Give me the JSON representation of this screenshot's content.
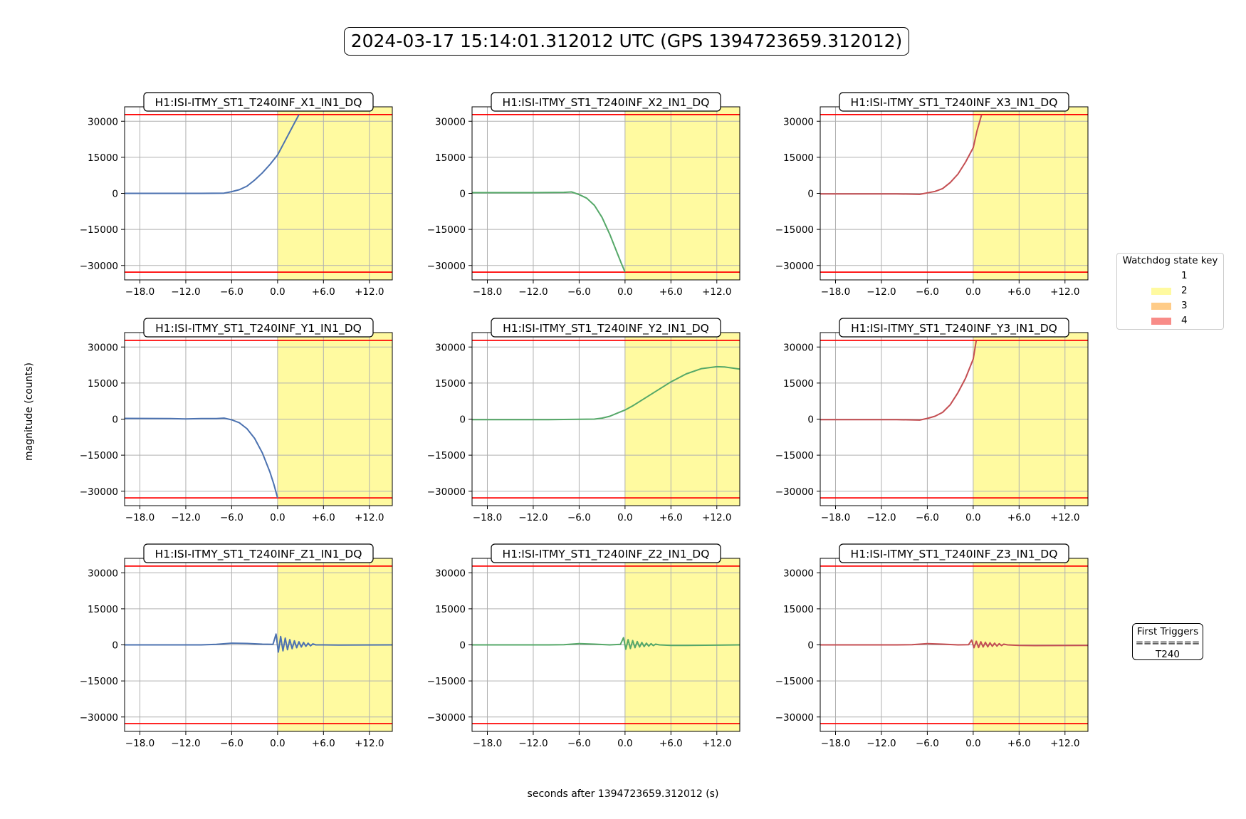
{
  "figure": {
    "title": "2024-03-17 15:14:01.312012 UTC (GPS 1394723659.312012)",
    "xlabel": "seconds after 1394723659.312012 (s)",
    "ylabel": "magnitude (counts)"
  },
  "legend": {
    "title": "Watchdog state key",
    "items": [
      {
        "label": "1",
        "color": "#ffffff"
      },
      {
        "label": "2",
        "color": "#fffaa0"
      },
      {
        "label": "3",
        "color": "#ffcc88"
      },
      {
        "label": "4",
        "color": "#f88c88"
      }
    ]
  },
  "triggers": {
    "title": "First Triggers",
    "divider": "========",
    "value": "T240"
  },
  "chart_data": [
    {
      "type": "line",
      "title": "H1:ISI-ITMY_ST1_T240INF_X1_IN1_DQ",
      "color": "#4c72b0",
      "xlim": [
        -20,
        15
      ],
      "ylim": [
        -36000,
        36000
      ],
      "xticks": [
        -18,
        -12,
        -6,
        0,
        6,
        12
      ],
      "xticklabels": [
        "−18.0",
        "−12.0",
        "−6.0",
        "0.0",
        "+6.0",
        "+12.0"
      ],
      "yticks": [
        30000,
        15000,
        0,
        -15000,
        -30000
      ],
      "yticklabels": [
        "30000",
        "15000",
        "0",
        "−15000",
        "−30000"
      ],
      "thresholds": [
        32768,
        -32768
      ],
      "shaded_region": {
        "x": [
          0,
          15
        ],
        "state": 2
      },
      "x": [
        -20,
        -10,
        -7,
        -6,
        -5,
        -4,
        -3,
        -2,
        -1,
        0,
        1,
        2,
        2.8
      ],
      "y": [
        0,
        0,
        100,
        700,
        1500,
        3000,
        5500,
        8500,
        12000,
        16000,
        22000,
        28000,
        32768
      ]
    },
    {
      "type": "line",
      "title": "H1:ISI-ITMY_ST1_T240INF_X2_IN1_DQ",
      "color": "#55a868",
      "xlim": [
        -20,
        15
      ],
      "ylim": [
        -36000,
        36000
      ],
      "xticks": [
        -18,
        -12,
        -6,
        0,
        6,
        12
      ],
      "xticklabels": [
        "−18.0",
        "−12.0",
        "−6.0",
        "0.0",
        "+6.0",
        "+12.0"
      ],
      "yticks": [
        30000,
        15000,
        0,
        -15000,
        -30000
      ],
      "yticklabels": [
        "30000",
        "15000",
        "0",
        "−15000",
        "−30000"
      ],
      "thresholds": [
        32768,
        -32768
      ],
      "shaded_region": {
        "x": [
          0,
          15
        ],
        "state": 2
      },
      "x": [
        -20,
        -12,
        -8,
        -7,
        -6,
        -5,
        -4,
        -3,
        -2,
        -1,
        -0.5,
        0
      ],
      "y": [
        300,
        300,
        400,
        600,
        -500,
        -2000,
        -5000,
        -10000,
        -17000,
        -25000,
        -29000,
        -32768
      ]
    },
    {
      "type": "line",
      "title": "H1:ISI-ITMY_ST1_T240INF_X3_IN1_DQ",
      "color": "#c44e52",
      "xlim": [
        -20,
        15
      ],
      "ylim": [
        -36000,
        36000
      ],
      "xticks": [
        -18,
        -12,
        -6,
        0,
        6,
        12
      ],
      "xticklabels": [
        "−18.0",
        "−12.0",
        "−6.0",
        "0.0",
        "+6.0",
        "+12.0"
      ],
      "yticks": [
        30000,
        15000,
        0,
        -15000,
        -30000
      ],
      "yticklabels": [
        "30000",
        "15000",
        "0",
        "−15000",
        "−30000"
      ],
      "thresholds": [
        32768,
        -32768
      ],
      "shaded_region": {
        "x": [
          0,
          15
        ],
        "state": 2
      },
      "x": [
        -20,
        -10,
        -7,
        -6,
        -5,
        -4,
        -3,
        -2,
        -1,
        0,
        0.5,
        1.1
      ],
      "y": [
        -200,
        -200,
        -400,
        200,
        800,
        2000,
        4500,
        8000,
        13000,
        19000,
        26000,
        32768
      ]
    },
    {
      "type": "line",
      "title": "H1:ISI-ITMY_ST1_T240INF_Y1_IN1_DQ",
      "color": "#4c72b0",
      "xlim": [
        -20,
        15
      ],
      "ylim": [
        -36000,
        36000
      ],
      "xticks": [
        -18,
        -12,
        -6,
        0,
        6,
        12
      ],
      "xticklabels": [
        "−18.0",
        "−12.0",
        "−6.0",
        "0.0",
        "+6.0",
        "+12.0"
      ],
      "yticks": [
        30000,
        15000,
        0,
        -15000,
        -30000
      ],
      "yticklabels": [
        "30000",
        "15000",
        "0",
        "−15000",
        "−30000"
      ],
      "thresholds": [
        32768,
        -32768
      ],
      "shaded_region": {
        "x": [
          0,
          15
        ],
        "state": 2
      },
      "x": [
        -20,
        -14,
        -12,
        -10,
        -8,
        -7,
        -6,
        -5,
        -4,
        -3,
        -2,
        -1,
        -0.5,
        0
      ],
      "y": [
        300,
        200,
        100,
        200,
        200,
        400,
        -300,
        -1500,
        -4000,
        -8000,
        -14000,
        -22000,
        -27000,
        -32768
      ]
    },
    {
      "type": "line",
      "title": "H1:ISI-ITMY_ST1_T240INF_Y2_IN1_DQ",
      "color": "#55a868",
      "xlim": [
        -20,
        15
      ],
      "ylim": [
        -36000,
        36000
      ],
      "xticks": [
        -18,
        -12,
        -6,
        0,
        6,
        12
      ],
      "xticklabels": [
        "−18.0",
        "−12.0",
        "−6.0",
        "0.0",
        "+6.0",
        "+12.0"
      ],
      "yticks": [
        30000,
        15000,
        0,
        -15000,
        -30000
      ],
      "yticklabels": [
        "30000",
        "15000",
        "0",
        "−15000",
        "−30000"
      ],
      "thresholds": [
        32768,
        -32768
      ],
      "shaded_region": {
        "x": [
          0,
          15
        ],
        "state": 2
      },
      "x": [
        -20,
        -10,
        -6,
        -4,
        -3,
        -2,
        -1,
        0,
        1,
        2,
        4,
        6,
        8,
        10,
        12,
        13,
        15
      ],
      "y": [
        -200,
        -200,
        -100,
        0,
        400,
        1200,
        2500,
        3800,
        5500,
        7500,
        11500,
        15500,
        18800,
        21000,
        21800,
        21700,
        20800
      ]
    },
    {
      "type": "line",
      "title": "H1:ISI-ITMY_ST1_T240INF_Y3_IN1_DQ",
      "color": "#c44e52",
      "xlim": [
        -20,
        15
      ],
      "ylim": [
        -36000,
        36000
      ],
      "xticks": [
        -18,
        -12,
        -6,
        0,
        6,
        12
      ],
      "xticklabels": [
        "−18.0",
        "−12.0",
        "−6.0",
        "0.0",
        "+6.0",
        "+12.0"
      ],
      "yticks": [
        30000,
        15000,
        0,
        -15000,
        -30000
      ],
      "yticklabels": [
        "30000",
        "15000",
        "0",
        "−15000",
        "−30000"
      ],
      "thresholds": [
        32768,
        -32768
      ],
      "shaded_region": {
        "x": [
          0,
          15
        ],
        "state": 2
      },
      "x": [
        -20,
        -10,
        -7,
        -6,
        -5,
        -4,
        -3,
        -2,
        -1,
        0,
        0.4
      ],
      "y": [
        -200,
        -200,
        -400,
        300,
        1200,
        2800,
        6000,
        11000,
        17000,
        25000,
        32768
      ]
    },
    {
      "type": "line",
      "title": "H1:ISI-ITMY_ST1_T240INF_Z1_IN1_DQ",
      "color": "#4c72b0",
      "xlim": [
        -20,
        15
      ],
      "ylim": [
        -36000,
        36000
      ],
      "xticks": [
        -18,
        -12,
        -6,
        0,
        6,
        12
      ],
      "xticklabels": [
        "−18.0",
        "−12.0",
        "−6.0",
        "0.0",
        "+6.0",
        "+12.0"
      ],
      "yticks": [
        30000,
        15000,
        0,
        -15000,
        -30000
      ],
      "yticklabels": [
        "30000",
        "15000",
        "0",
        "−15000",
        "−30000"
      ],
      "thresholds": [
        32768,
        -32768
      ],
      "shaded_region": {
        "x": [
          0,
          15
        ],
        "state": 2
      },
      "x": [
        -20,
        -10,
        -8,
        -6,
        -4,
        -2,
        -0.6,
        -0.2,
        0.1,
        0.4,
        0.7,
        1.0,
        1.3,
        1.6,
        1.9,
        2.2,
        2.5,
        2.8,
        3.1,
        3.4,
        3.7,
        4.0,
        4.3,
        4.6,
        5.0,
        6,
        8,
        15
      ],
      "y": [
        0,
        0,
        200,
        700,
        600,
        300,
        200,
        4500,
        -3000,
        3500,
        -2500,
        2800,
        -2000,
        2200,
        -1600,
        1700,
        -1200,
        1300,
        -900,
        1000,
        -600,
        700,
        -400,
        400,
        0,
        0,
        -100,
        0
      ]
    },
    {
      "type": "line",
      "title": "H1:ISI-ITMY_ST1_T240INF_Z2_IN1_DQ",
      "color": "#55a868",
      "xlim": [
        -20,
        15
      ],
      "ylim": [
        -36000,
        36000
      ],
      "xticks": [
        -18,
        -12,
        -6,
        0,
        6,
        12
      ],
      "xticklabels": [
        "−18.0",
        "−12.0",
        "−6.0",
        "0.0",
        "+6.0",
        "+12.0"
      ],
      "yticks": [
        30000,
        15000,
        0,
        -15000,
        -30000
      ],
      "yticklabels": [
        "30000",
        "15000",
        "0",
        "−15000",
        "−30000"
      ],
      "thresholds": [
        32768,
        -32768
      ],
      "shaded_region": {
        "x": [
          0,
          15
        ],
        "state": 2
      },
      "x": [
        -20,
        -10,
        -8,
        -6,
        -4,
        -2,
        -0.6,
        -0.2,
        0.1,
        0.4,
        0.7,
        1.0,
        1.3,
        1.6,
        1.9,
        2.2,
        2.5,
        2.8,
        3.1,
        3.4,
        3.7,
        4.0,
        4.5,
        6,
        8,
        15
      ],
      "y": [
        0,
        0,
        100,
        500,
        300,
        0,
        200,
        3000,
        -1800,
        2200,
        -1500,
        1800,
        -1200,
        1400,
        -900,
        1000,
        -700,
        700,
        -500,
        500,
        -300,
        300,
        0,
        -200,
        -200,
        0
      ]
    },
    {
      "type": "line",
      "title": "H1:ISI-ITMY_ST1_T240INF_Z3_IN1_DQ",
      "color": "#c44e52",
      "xlim": [
        -20,
        15
      ],
      "ylim": [
        -36000,
        36000
      ],
      "xticks": [
        -18,
        -12,
        -6,
        0,
        6,
        12
      ],
      "xticklabels": [
        "−18.0",
        "−12.0",
        "−6.0",
        "0.0",
        "+6.0",
        "+12.0"
      ],
      "yticks": [
        30000,
        15000,
        0,
        -15000,
        -30000
      ],
      "yticklabels": [
        "30000",
        "15000",
        "0",
        "−15000",
        "−30000"
      ],
      "thresholds": [
        32768,
        -32768
      ],
      "shaded_region": {
        "x": [
          0,
          15
        ],
        "state": 2
      },
      "x": [
        -20,
        -10,
        -8,
        -6,
        -4,
        -2,
        -0.6,
        -0.2,
        0.1,
        0.4,
        0.7,
        1.0,
        1.3,
        1.6,
        1.9,
        2.2,
        2.5,
        2.8,
        3.1,
        3.4,
        3.7,
        4.0,
        4.5,
        6,
        8,
        15
      ],
      "y": [
        0,
        0,
        100,
        500,
        300,
        0,
        100,
        2000,
        -1200,
        1500,
        -1100,
        1300,
        -900,
        1100,
        -800,
        900,
        -600,
        700,
        -500,
        500,
        -300,
        300,
        0,
        -200,
        -300,
        -200
      ]
    }
  ]
}
